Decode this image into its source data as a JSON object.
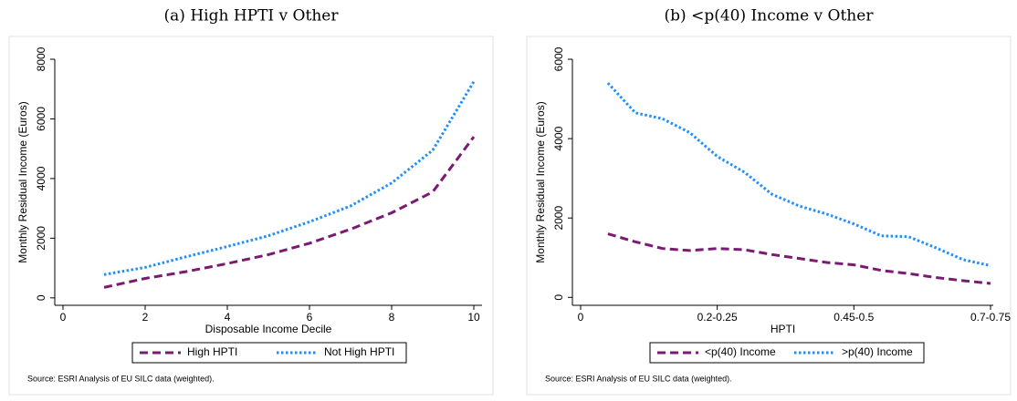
{
  "chart_data": [
    {
      "type": "line",
      "title": "(a) High HPTI v Other",
      "x_label": "Disposable Income Decile",
      "y_label": "Monthly Residual Income (Euros)",
      "x": [
        1,
        2,
        3,
        4,
        5,
        6,
        7,
        8,
        9,
        10
      ],
      "series": [
        {
          "name": "High HPTI",
          "color": "#7b1a72",
          "style": "dashed",
          "values": [
            350,
            650,
            880,
            1150,
            1450,
            1830,
            2300,
            2850,
            3550,
            5400
          ]
        },
        {
          "name": "Not High HPTI",
          "color": "#1e8fff",
          "style": "dotted",
          "values": [
            780,
            1020,
            1380,
            1720,
            2080,
            2550,
            3080,
            3850,
            4950,
            7250
          ]
        }
      ],
      "xlim": [
        -0.2,
        10.2
      ],
      "xticks": [
        0,
        2,
        4,
        6,
        8,
        10
      ],
      "ylim": [
        -250,
        8000
      ],
      "yticks": [
        0,
        2000,
        4000,
        6000,
        8000
      ],
      "note": "Source:  ESRI Analysis of EU SILC data (weighted)."
    },
    {
      "type": "line",
      "title": "(b) <p(40) Income v Other",
      "x_label": "HPTI",
      "y_label": "Monthly Residual Income (Euros)",
      "x": [
        1,
        2,
        3,
        4,
        5,
        6,
        7,
        8,
        9,
        10,
        11,
        12,
        13,
        14,
        15
      ],
      "series": [
        {
          "name": "<p(40) Income",
          "color": "#7b1a72",
          "style": "dashed",
          "values": [
            1600,
            1400,
            1230,
            1180,
            1230,
            1200,
            1080,
            980,
            880,
            820,
            680,
            600,
            500,
            420,
            350
          ]
        },
        {
          "name": ">p(40) Income",
          "color": "#1e8fff",
          "style": "dotted",
          "values": [
            5400,
            4650,
            4500,
            4150,
            3550,
            3150,
            2600,
            2300,
            2100,
            1850,
            1550,
            1530,
            1250,
            950,
            800
          ]
        }
      ],
      "xlim": [
        -0.3,
        15.1
      ],
      "xticks": [
        0,
        {
          "value": 5,
          "label": "0.2-0.25"
        },
        {
          "value": 10,
          "label": "0.45-0.5"
        },
        {
          "value": 15,
          "label": "0.7-0.75"
        }
      ],
      "ylim": [
        -200,
        6000
      ],
      "yticks": [
        0,
        2000,
        4000,
        6000
      ],
      "note": "Source:  ESRI Analysis of EU SILC data (weighted)."
    }
  ]
}
